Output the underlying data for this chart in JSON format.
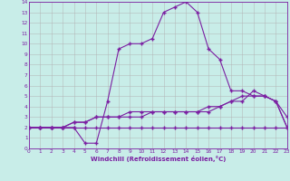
{
  "xlabel": "Windchill (Refroidissement éolien,°C)",
  "x": [
    0,
    1,
    2,
    3,
    4,
    5,
    6,
    7,
    8,
    9,
    10,
    11,
    12,
    13,
    14,
    15,
    16,
    17,
    18,
    19,
    20,
    21,
    22,
    23
  ],
  "line1": [
    2,
    2,
    2,
    2,
    2,
    0.5,
    0.5,
    4.5,
    9.5,
    10,
    10,
    10.5,
    13,
    13.5,
    14,
    13,
    9.5,
    8.5,
    5.5,
    5.5,
    5,
    5,
    4.5,
    3
  ],
  "line2": [
    2,
    2,
    2,
    2,
    2.5,
    2.5,
    3,
    3,
    3,
    3.5,
    3.5,
    3.5,
    3.5,
    3.5,
    3.5,
    3.5,
    4,
    4,
    4.5,
    5,
    5,
    5,
    4.5,
    2
  ],
  "line3": [
    2,
    2,
    2,
    2,
    2,
    2,
    2,
    2,
    2,
    2,
    2,
    2,
    2,
    2,
    2,
    2,
    2,
    2,
    2,
    2,
    2,
    2,
    2,
    2
  ],
  "line4": [
    2,
    2,
    2,
    2,
    2.5,
    2.5,
    3,
    3,
    3,
    3,
    3,
    3.5,
    3.5,
    3.5,
    3.5,
    3.5,
    3.5,
    4,
    4.5,
    4.5,
    5.5,
    5,
    4.5,
    2
  ],
  "line_color": "#7b1fa2",
  "bg_color": "#c8ede8",
  "grid_color": "#b0b0b0",
  "xlim": [
    0,
    23
  ],
  "ylim": [
    0,
    14
  ],
  "yticks": [
    0,
    1,
    2,
    3,
    4,
    5,
    6,
    7,
    8,
    9,
    10,
    11,
    12,
    13,
    14
  ],
  "xticks": [
    0,
    1,
    2,
    3,
    4,
    5,
    6,
    7,
    8,
    9,
    10,
    11,
    12,
    13,
    14,
    15,
    16,
    17,
    18,
    19,
    20,
    21,
    22,
    23
  ]
}
